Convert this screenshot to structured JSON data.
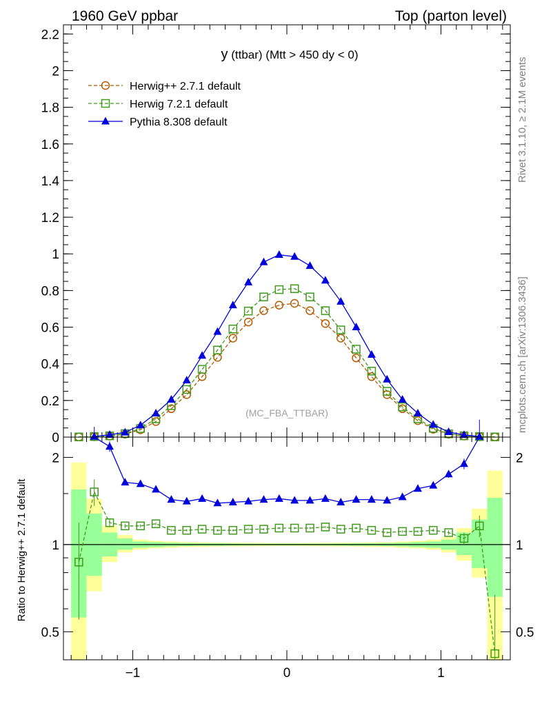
{
  "header": {
    "left": "1960 GeV ppbar",
    "right": "Top (parton level)"
  },
  "side_labels": {
    "rivet": "Rivet 3.1.10, ≥ 2.1M events",
    "mcplots": "mcplots.cern.ch [arXiv:1306.3436]"
  },
  "plot_title": {
    "main": "y",
    "rest": " (ttbar) (Mtt > 450 dy < 0)"
  },
  "analysis_tag": "(MC_FBA_TTBAR)",
  "ratio_ylabel": "Ratio to Herwig++ 2.7.1 default",
  "chart_data": [
    {
      "type": "line",
      "title": "y (ttbar) (Mtt > 450 dy < 0)",
      "xlim": [
        -1.45,
        1.45
      ],
      "ylim": [
        0,
        2.25
      ],
      "x_ticks": [
        "−1",
        "0",
        "1"
      ],
      "y_ticks": [
        "0",
        "0.2",
        "0.4",
        "0.6",
        "0.8",
        "1",
        "1.2",
        "1.4",
        "1.6",
        "1.8",
        "2",
        "2.2"
      ],
      "x": [
        -1.35,
        -1.25,
        -1.15,
        -1.05,
        -0.95,
        -0.85,
        -0.75,
        -0.65,
        -0.55,
        -0.45,
        -0.35,
        -0.25,
        -0.15,
        -0.05,
        0.05,
        0.15,
        0.25,
        0.35,
        0.45,
        0.55,
        0.65,
        0.75,
        0.85,
        0.95,
        1.05,
        1.15,
        1.25,
        1.35
      ],
      "legend_position": "top-left",
      "series": [
        {
          "name": "Herwig++ 2.7.1 default",
          "color": "#b35900",
          "marker": "circle",
          "dash": true,
          "values": [
            0.001,
            0.002,
            0.006,
            0.016,
            0.04,
            0.085,
            0.155,
            0.232,
            0.33,
            0.435,
            0.54,
            0.628,
            0.69,
            0.72,
            0.73,
            0.69,
            0.62,
            0.54,
            0.432,
            0.33,
            0.232,
            0.155,
            0.09,
            0.043,
            0.016,
            0.006,
            0.002,
            0.001
          ]
        },
        {
          "name": "Herwig 7.2.1 default",
          "color": "#3d9a1a",
          "marker": "square",
          "dash": true,
          "values": [
            0.001,
            0.003,
            0.007,
            0.019,
            0.047,
            0.1,
            0.172,
            0.26,
            0.37,
            0.475,
            0.59,
            0.688,
            0.765,
            0.805,
            0.81,
            0.765,
            0.69,
            0.585,
            0.48,
            0.36,
            0.25,
            0.165,
            0.1,
            0.048,
            0.018,
            0.007,
            0.003,
            0.001
          ]
        },
        {
          "name": "Pythia 8.308 default",
          "color": "#0000dd",
          "marker": "triangle",
          "dash": false,
          "values": [
            null,
            0.003,
            0.013,
            0.026,
            0.065,
            0.13,
            0.205,
            0.31,
            0.445,
            0.575,
            0.72,
            0.845,
            0.955,
            0.995,
            0.985,
            0.935,
            0.855,
            0.74,
            0.6,
            0.45,
            0.315,
            0.205,
            0.13,
            0.068,
            0.028,
            0.012,
            0.003,
            null
          ]
        }
      ]
    },
    {
      "type": "line",
      "title": "",
      "ylabel": "Ratio to Herwig++ 2.7.1 default",
      "xlim": [
        -1.45,
        1.45
      ],
      "ylim": [
        0.4,
        2.35
      ],
      "log_y": true,
      "y_ticks": [
        "0.5",
        "1",
        "2"
      ],
      "reference": 1,
      "uncertainty_bands": {
        "x_edges": [
          -1.4,
          -1.3,
          -1.2,
          -1.1,
          -1.0,
          -0.9,
          -0.8,
          -0.7,
          -0.6,
          -0.5,
          -0.4,
          -0.3,
          -0.2,
          -0.1,
          0.0,
          0.1,
          0.2,
          0.3,
          0.4,
          0.5,
          0.6,
          0.7,
          0.8,
          0.9,
          1.0,
          1.1,
          1.2,
          1.3,
          1.4
        ],
        "inner_green": [
          [
            0.56,
            1.55
          ],
          [
            0.78,
            1.28
          ],
          [
            0.91,
            1.1
          ],
          [
            0.96,
            1.05
          ],
          [
            0.975,
            1.025
          ],
          [
            0.98,
            1.02
          ],
          [
            0.985,
            1.015
          ],
          [
            0.988,
            1.012
          ],
          [
            0.99,
            1.01
          ],
          [
            0.99,
            1.01
          ],
          [
            0.991,
            1.009
          ],
          [
            0.992,
            1.008
          ],
          [
            0.993,
            1.007
          ],
          [
            0.993,
            1.007
          ],
          [
            0.993,
            1.007
          ],
          [
            0.993,
            1.007
          ],
          [
            0.992,
            1.008
          ],
          [
            0.991,
            1.009
          ],
          [
            0.99,
            1.01
          ],
          [
            0.99,
            1.01
          ],
          [
            0.988,
            1.012
          ],
          [
            0.985,
            1.015
          ],
          [
            0.98,
            1.02
          ],
          [
            0.975,
            1.025
          ],
          [
            0.96,
            1.04
          ],
          [
            0.92,
            1.1
          ],
          [
            0.83,
            1.22
          ],
          [
            0.66,
            1.45
          ]
        ],
        "outer_yellow": [
          [
            0.38,
            1.92
          ],
          [
            0.69,
            1.44
          ],
          [
            0.87,
            1.16
          ],
          [
            0.94,
            1.08
          ],
          [
            0.96,
            1.04
          ],
          [
            0.97,
            1.03
          ],
          [
            0.975,
            1.025
          ],
          [
            0.98,
            1.02
          ],
          [
            0.982,
            1.018
          ],
          [
            0.984,
            1.016
          ],
          [
            0.985,
            1.015
          ],
          [
            0.986,
            1.014
          ],
          [
            0.987,
            1.013
          ],
          [
            0.988,
            1.012
          ],
          [
            0.988,
            1.012
          ],
          [
            0.987,
            1.013
          ],
          [
            0.986,
            1.014
          ],
          [
            0.985,
            1.015
          ],
          [
            0.984,
            1.016
          ],
          [
            0.982,
            1.018
          ],
          [
            0.98,
            1.02
          ],
          [
            0.975,
            1.025
          ],
          [
            0.97,
            1.03
          ],
          [
            0.96,
            1.04
          ],
          [
            0.94,
            1.06
          ],
          [
            0.88,
            1.14
          ],
          [
            0.77,
            1.33
          ],
          [
            0.38,
            1.8
          ]
        ]
      },
      "series": [
        {
          "name": "Herwig 7.2.1 default",
          "color": "#3d9a1a",
          "marker": "square",
          "dash": true,
          "values": [
            0.87,
            1.52,
            1.19,
            1.16,
            1.16,
            1.18,
            1.12,
            1.12,
            1.13,
            1.12,
            1.12,
            1.13,
            1.13,
            1.14,
            1.14,
            1.14,
            1.15,
            1.13,
            1.14,
            1.12,
            1.1,
            1.11,
            1.11,
            1.12,
            1.1,
            1.05,
            1.16,
            0.42
          ],
          "errors": [
            0.32,
            0.16,
            0.04,
            0.02,
            0.015,
            0.012,
            0.01,
            0.01,
            0.01,
            0.01,
            0.01,
            0.01,
            0.01,
            0.01,
            0.01,
            0.01,
            0.01,
            0.01,
            0.01,
            0.01,
            0.01,
            0.01,
            0.012,
            0.015,
            0.02,
            0.05,
            0.1,
            0.25
          ]
        },
        {
          "name": "Pythia 8.308 default",
          "color": "#0000dd",
          "marker": "triangle",
          "dash": false,
          "values": [
            null,
            2.75,
            2.18,
            1.64,
            1.62,
            1.55,
            1.43,
            1.41,
            1.44,
            1.39,
            1.4,
            1.41,
            1.43,
            1.44,
            1.42,
            1.42,
            1.44,
            1.4,
            1.43,
            1.43,
            1.42,
            1.46,
            1.56,
            1.6,
            1.75,
            1.9,
            2.9,
            null
          ],
          "errors": [
            0,
            0.2,
            0.09,
            0.04,
            0.03,
            0.02,
            0.015,
            0.012,
            0.012,
            0.01,
            0.01,
            0.01,
            0.01,
            0.01,
            0.01,
            0.01,
            0.01,
            0.01,
            0.01,
            0.012,
            0.012,
            0.015,
            0.02,
            0.03,
            0.05,
            0.08,
            0.2,
            0
          ]
        }
      ]
    }
  ]
}
